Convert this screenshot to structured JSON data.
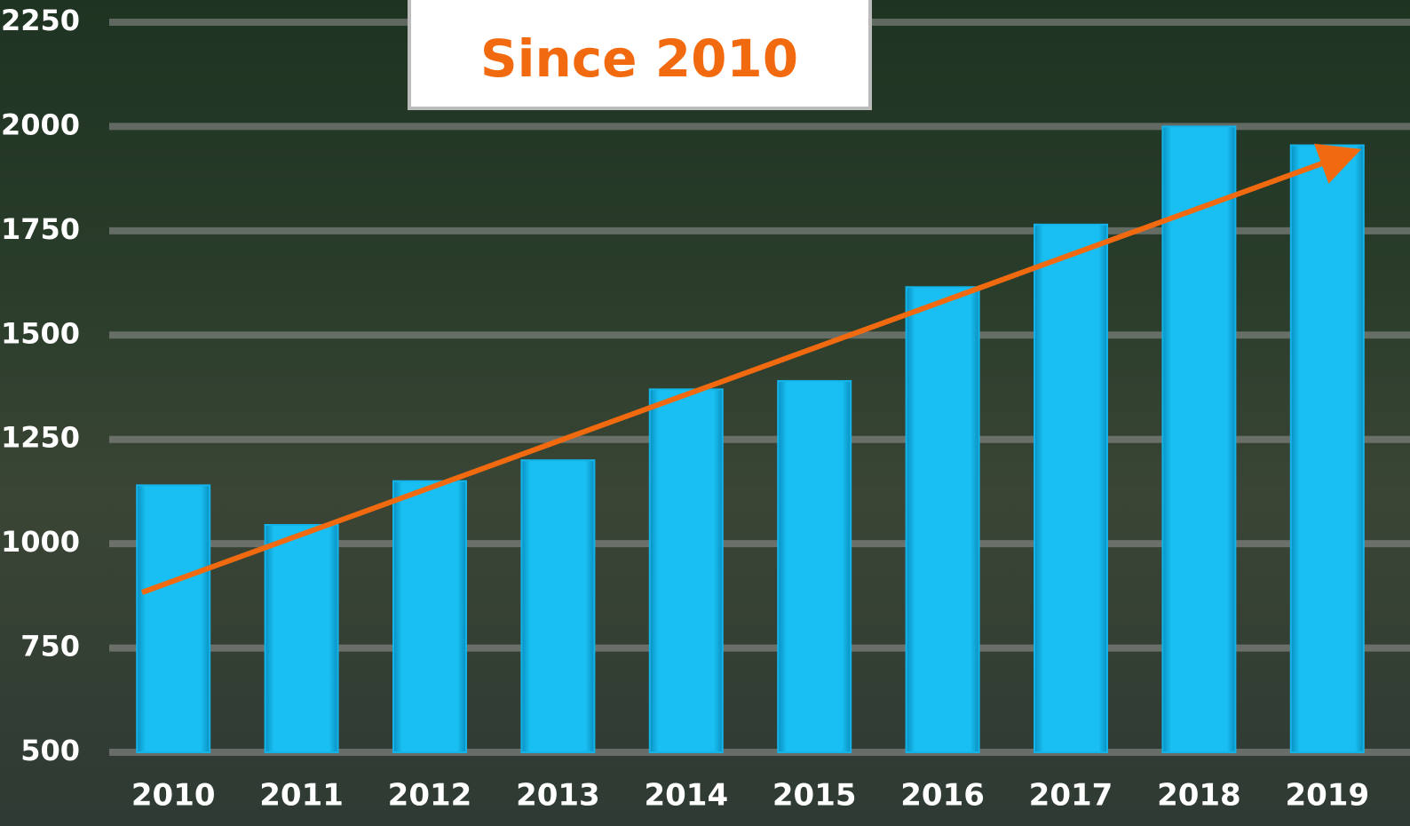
{
  "chart_data": {
    "type": "bar",
    "annotation": "Since 2010",
    "categories": [
      "2010",
      "2011",
      "2012",
      "2013",
      "2014",
      "2015",
      "2016",
      "2017",
      "2018",
      "2019"
    ],
    "values": [
      1140,
      1045,
      1150,
      1200,
      1370,
      1390,
      1615,
      1765,
      2000,
      1955
    ],
    "color": "#13b4ea",
    "ylim": [
      500,
      2250
    ],
    "yticks": [
      500,
      750,
      1000,
      1250,
      1500,
      1750,
      2000,
      2250
    ],
    "grid": true
  }
}
